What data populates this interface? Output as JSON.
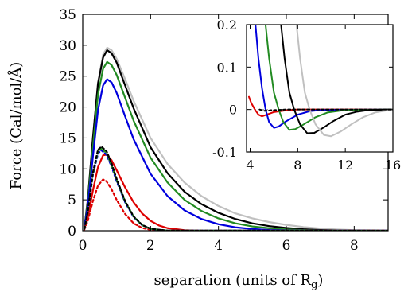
{
  "chart_data": [
    {
      "id": "main",
      "type": "line",
      "xlabel": "separation (units of R",
      "xlabel_sub": "g",
      "xlabel_close": ")",
      "ylabel": "Force (Cal/mol/Å)",
      "xlim": [
        0,
        9
      ],
      "ylim": [
        0,
        35
      ],
      "xticks": [
        0,
        2,
        4,
        6,
        8
      ],
      "yticks": [
        0,
        5,
        10,
        15,
        20,
        25,
        30,
        35
      ],
      "series": [
        {
          "color": "#c0c0c0",
          "dash": false,
          "points": [
            [
              0.05,
              0.5
            ],
            [
              0.15,
              5
            ],
            [
              0.3,
              15
            ],
            [
              0.45,
              24
            ],
            [
              0.6,
              28.5
            ],
            [
              0.72,
              29.6
            ],
            [
              0.85,
              29.2
            ],
            [
              1.0,
              27.8
            ],
            [
              1.25,
              24.5
            ],
            [
              1.5,
              21
            ],
            [
              2.0,
              15
            ],
            [
              2.5,
              10.8
            ],
            [
              3.0,
              7.8
            ],
            [
              3.5,
              5.6
            ],
            [
              4.0,
              4.0
            ],
            [
              4.5,
              2.8
            ],
            [
              5.0,
              2.0
            ],
            [
              5.5,
              1.4
            ],
            [
              6.0,
              0.95
            ],
            [
              6.5,
              0.6
            ],
            [
              7.0,
              0.35
            ],
            [
              7.5,
              0.2
            ],
            [
              8.0,
              0.1
            ],
            [
              9.0,
              0.03
            ]
          ]
        },
        {
          "color": "#000000",
          "dash": false,
          "points": [
            [
              0.05,
              0.5
            ],
            [
              0.15,
              5
            ],
            [
              0.3,
              15
            ],
            [
              0.45,
              23.8
            ],
            [
              0.6,
              28
            ],
            [
              0.72,
              29.2
            ],
            [
              0.85,
              28.7
            ],
            [
              1.0,
              27.2
            ],
            [
              1.25,
              23.5
            ],
            [
              1.5,
              19.8
            ],
            [
              2.0,
              13.5
            ],
            [
              2.5,
              9.3
            ],
            [
              3.0,
              6.3
            ],
            [
              3.5,
              4.3
            ],
            [
              4.0,
              2.9
            ],
            [
              4.5,
              1.9
            ],
            [
              5.0,
              1.2
            ],
            [
              5.5,
              0.75
            ],
            [
              6.0,
              0.45
            ],
            [
              6.5,
              0.25
            ],
            [
              7.0,
              0.12
            ],
            [
              7.5,
              0.05
            ],
            [
              8.0,
              0.02
            ],
            [
              9.0,
              0.0
            ]
          ]
        },
        {
          "color": "#228b22",
          "dash": false,
          "points": [
            [
              0.05,
              0.5
            ],
            [
              0.15,
              4.5
            ],
            [
              0.3,
              13.5
            ],
            [
              0.45,
              22
            ],
            [
              0.6,
              26.2
            ],
            [
              0.72,
              27.3
            ],
            [
              0.85,
              26.8
            ],
            [
              1.0,
              25.2
            ],
            [
              1.25,
              21.5
            ],
            [
              1.5,
              17.8
            ],
            [
              2.0,
              11.8
            ],
            [
              2.5,
              7.8
            ],
            [
              3.0,
              5.0
            ],
            [
              3.5,
              3.2
            ],
            [
              4.0,
              2.0
            ],
            [
              4.5,
              1.2
            ],
            [
              5.0,
              0.7
            ],
            [
              5.5,
              0.4
            ],
            [
              6.0,
              0.2
            ],
            [
              6.5,
              0.1
            ],
            [
              7.0,
              0.04
            ],
            [
              8.0,
              0.0
            ],
            [
              9.0,
              0.0
            ]
          ]
        },
        {
          "color": "#0000dd",
          "dash": false,
          "points": [
            [
              0.05,
              0.5
            ],
            [
              0.15,
              4
            ],
            [
              0.3,
              12
            ],
            [
              0.45,
              19.5
            ],
            [
              0.6,
              23.5
            ],
            [
              0.72,
              24.5
            ],
            [
              0.85,
              24.0
            ],
            [
              1.0,
              22.3
            ],
            [
              1.25,
              18.5
            ],
            [
              1.5,
              14.8
            ],
            [
              2.0,
              9.2
            ],
            [
              2.5,
              5.6
            ],
            [
              3.0,
              3.3
            ],
            [
              3.5,
              1.9
            ],
            [
              4.0,
              1.05
            ],
            [
              4.5,
              0.55
            ],
            [
              5.0,
              0.28
            ],
            [
              5.5,
              0.12
            ],
            [
              6.0,
              0.05
            ],
            [
              7.0,
              0.0
            ],
            [
              9.0,
              0.0
            ]
          ]
        },
        {
          "color": "#dd0000",
          "dash": false,
          "points": [
            [
              0.05,
              0.3
            ],
            [
              0.15,
              2.2
            ],
            [
              0.3,
              6.5
            ],
            [
              0.45,
              10.3
            ],
            [
              0.6,
              12.2
            ],
            [
              0.7,
              12.3
            ],
            [
              0.85,
              11.4
            ],
            [
              1.0,
              9.8
            ],
            [
              1.25,
              7.0
            ],
            [
              1.5,
              4.6
            ],
            [
              1.75,
              2.8
            ],
            [
              2.0,
              1.6
            ],
            [
              2.25,
              0.85
            ],
            [
              2.5,
              0.42
            ],
            [
              3.0,
              0.08
            ],
            [
              3.5,
              0.0
            ],
            [
              9.0,
              0.0
            ]
          ]
        },
        {
          "color": "#dd0000",
          "dash": true,
          "points": [
            [
              0.05,
              0.2
            ],
            [
              0.15,
              1.6
            ],
            [
              0.3,
              4.8
            ],
            [
              0.45,
              7.3
            ],
            [
              0.6,
              8.3
            ],
            [
              0.7,
              8.0
            ],
            [
              0.85,
              6.7
            ],
            [
              1.0,
              5.0
            ],
            [
              1.25,
              2.7
            ],
            [
              1.5,
              1.2
            ],
            [
              1.75,
              0.45
            ],
            [
              2.0,
              0.15
            ],
            [
              2.5,
              0.0
            ],
            [
              9.0,
              0.0
            ]
          ]
        },
        {
          "color": "#0000dd",
          "dash": true,
          "points": [
            [
              0.05,
              0.3
            ],
            [
              0.15,
              3
            ],
            [
              0.3,
              9
            ],
            [
              0.45,
              12.5
            ],
            [
              0.55,
              13.0
            ],
            [
              0.7,
              12.3
            ],
            [
              0.85,
              10.4
            ],
            [
              1.0,
              8.0
            ],
            [
              1.25,
              4.6
            ],
            [
              1.5,
              2.2
            ],
            [
              1.75,
              0.9
            ],
            [
              2.0,
              0.3
            ],
            [
              2.5,
              0.02
            ],
            [
              9.0,
              0.0
            ]
          ]
        },
        {
          "color": "#228b22",
          "dash": true,
          "points": [
            [
              0.05,
              0.3
            ],
            [
              0.15,
              3
            ],
            [
              0.3,
              9.2
            ],
            [
              0.45,
              12.8
            ],
            [
              0.55,
              13.3
            ],
            [
              0.7,
              12.6
            ],
            [
              0.85,
              10.6
            ],
            [
              1.0,
              8.2
            ],
            [
              1.25,
              4.7
            ],
            [
              1.5,
              2.3
            ],
            [
              1.75,
              0.9
            ],
            [
              2.0,
              0.3
            ],
            [
              2.5,
              0.02
            ],
            [
              9.0,
              0.0
            ]
          ]
        },
        {
          "color": "#000000",
          "dash": true,
          "points": [
            [
              0.05,
              0.3
            ],
            [
              0.15,
              3.1
            ],
            [
              0.3,
              9.4
            ],
            [
              0.45,
              13.1
            ],
            [
              0.55,
              13.6
            ],
            [
              0.7,
              12.9
            ],
            [
              0.85,
              10.9
            ],
            [
              1.0,
              8.4
            ],
            [
              1.25,
              4.8
            ],
            [
              1.5,
              2.3
            ],
            [
              1.75,
              0.95
            ],
            [
              2.0,
              0.32
            ],
            [
              2.5,
              0.02
            ],
            [
              9.0,
              0.0
            ]
          ]
        }
      ]
    },
    {
      "id": "inset",
      "type": "line",
      "xlim": [
        3.7,
        16
      ],
      "ylim": [
        -0.1,
        0.2
      ],
      "xticks": [
        4,
        8,
        12,
        16
      ],
      "yticks": [
        -0.1,
        0,
        0.1,
        0.2
      ],
      "ytick_labels": [
        "-0.1",
        "0",
        "0.1",
        "0.2"
      ],
      "zero_line": true,
      "series": [
        {
          "color": "#dd0000",
          "dash": false,
          "points": [
            [
              3.9,
              0.03
            ],
            [
              4.1,
              0.015
            ],
            [
              4.4,
              0.0
            ],
            [
              4.7,
              -0.012
            ],
            [
              5.0,
              -0.016
            ],
            [
              5.4,
              -0.012
            ],
            [
              6.0,
              -0.006
            ],
            [
              7.0,
              -0.002
            ],
            [
              8.0,
              0.0
            ],
            [
              16.0,
              0.0
            ]
          ]
        },
        {
          "color": "#0000dd",
          "dash": false,
          "points": [
            [
              4.45,
              0.2
            ],
            [
              4.7,
              0.12
            ],
            [
              5.0,
              0.05
            ],
            [
              5.3,
              0.0
            ],
            [
              5.6,
              -0.03
            ],
            [
              6.0,
              -0.043
            ],
            [
              6.4,
              -0.04
            ],
            [
              7.0,
              -0.028
            ],
            [
              8.0,
              -0.012
            ],
            [
              9.0,
              -0.004
            ],
            [
              10.0,
              -0.001
            ],
            [
              16.0,
              0.0
            ]
          ]
        },
        {
          "color": "#228b22",
          "dash": false,
          "points": [
            [
              5.3,
              0.2
            ],
            [
              5.6,
              0.12
            ],
            [
              6.0,
              0.04
            ],
            [
              6.4,
              0.0
            ],
            [
              6.8,
              -0.03
            ],
            [
              7.3,
              -0.048
            ],
            [
              7.8,
              -0.046
            ],
            [
              8.5,
              -0.035
            ],
            [
              9.5,
              -0.018
            ],
            [
              10.5,
              -0.007
            ],
            [
              12.0,
              -0.001
            ],
            [
              16.0,
              0.0
            ]
          ]
        },
        {
          "color": "#000000",
          "dash": false,
          "points": [
            [
              6.6,
              0.2
            ],
            [
              6.9,
              0.12
            ],
            [
              7.3,
              0.04
            ],
            [
              7.7,
              0.0
            ],
            [
              8.2,
              -0.035
            ],
            [
              8.8,
              -0.056
            ],
            [
              9.4,
              -0.055
            ],
            [
              10.2,
              -0.042
            ],
            [
              11.0,
              -0.027
            ],
            [
              12.0,
              -0.012
            ],
            [
              13.0,
              -0.005
            ],
            [
              14.0,
              -0.001
            ],
            [
              16.0,
              0.0
            ]
          ]
        },
        {
          "color": "#c0c0c0",
          "dash": false,
          "points": [
            [
              7.9,
              0.2
            ],
            [
              8.2,
              0.12
            ],
            [
              8.6,
              0.04
            ],
            [
              9.0,
              0.0
            ],
            [
              9.5,
              -0.035
            ],
            [
              10.2,
              -0.06
            ],
            [
              10.8,
              -0.063
            ],
            [
              11.6,
              -0.052
            ],
            [
              12.5,
              -0.035
            ],
            [
              13.5,
              -0.018
            ],
            [
              14.5,
              -0.007
            ],
            [
              15.5,
              -0.002
            ],
            [
              16.0,
              0.0
            ]
          ]
        },
        {
          "color": "#000000",
          "dash": true,
          "points": [
            [
              4.8,
              0.0
            ],
            [
              5.2,
              -0.003
            ],
            [
              5.8,
              -0.002
            ],
            [
              7.0,
              0.0
            ],
            [
              16.0,
              0.0
            ]
          ]
        }
      ]
    }
  ]
}
